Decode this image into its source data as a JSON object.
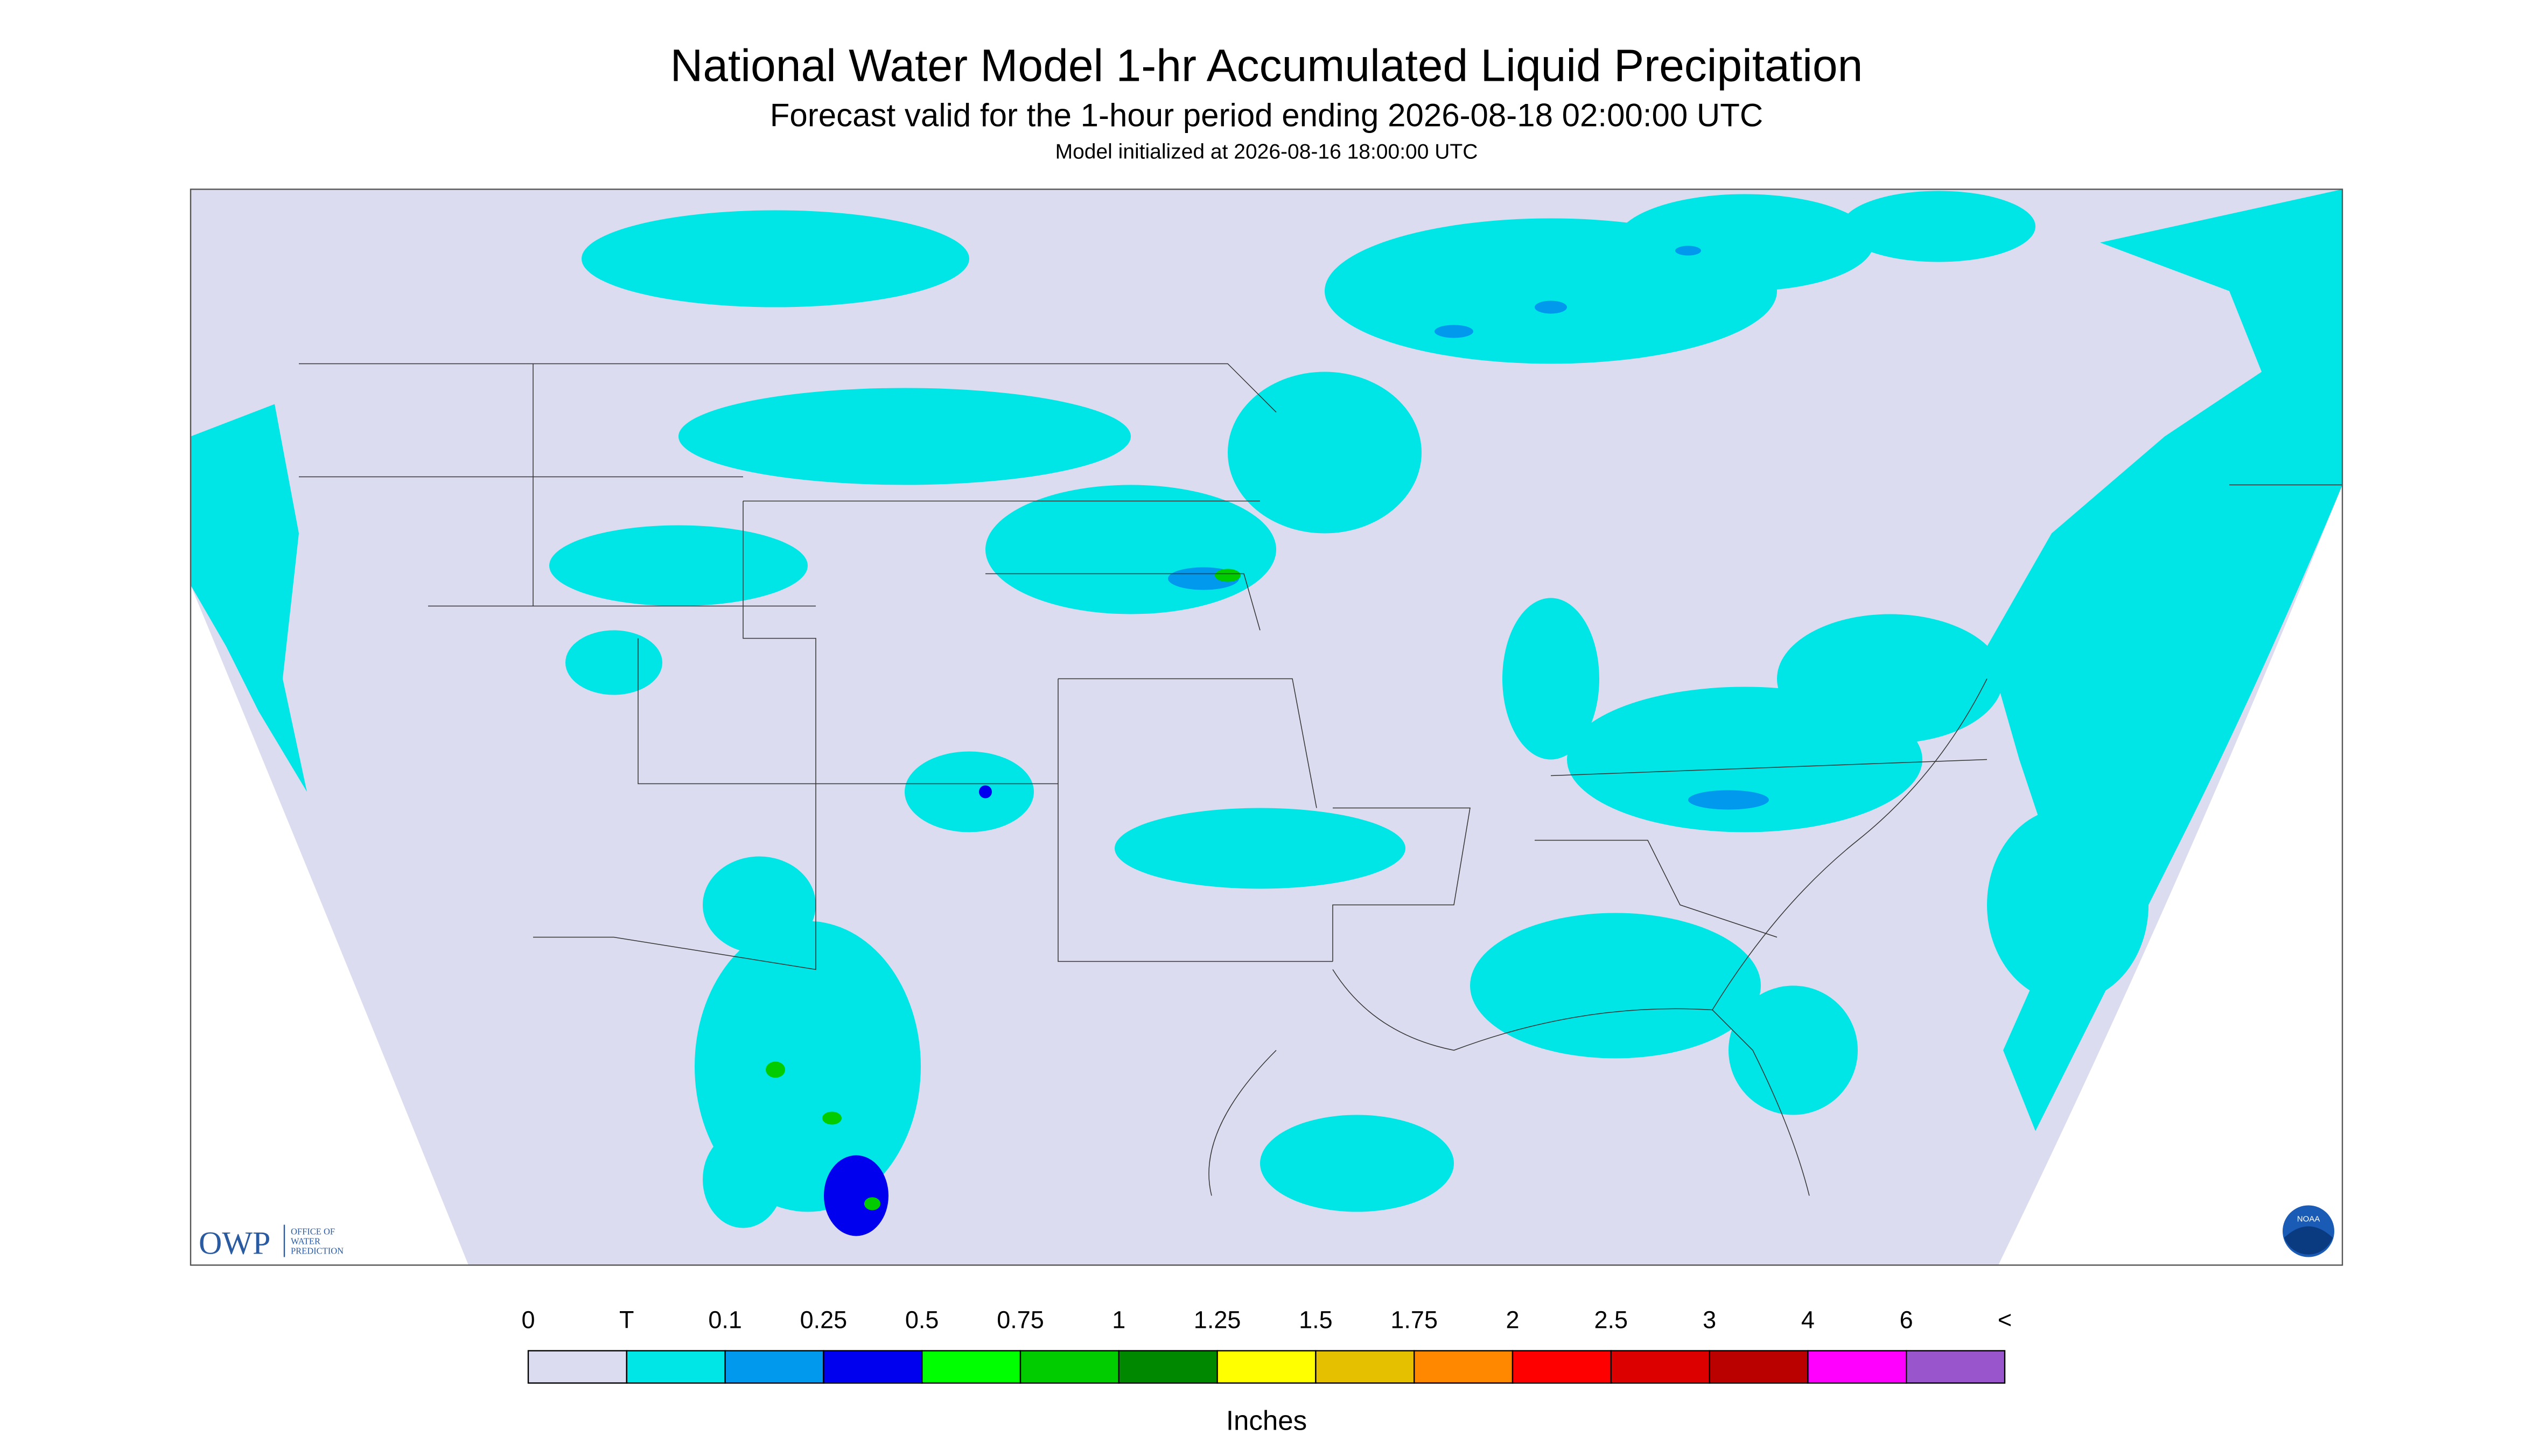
{
  "header": {
    "title": "National Water Model 1-hr Accumulated Liquid Precipitation",
    "subtitle": "Forecast valid for the 1-hour period ending 2026-08-18 02:00:00 UTC",
    "init": "Model initialized at 2026-08-16 18:00:00 UTC"
  },
  "logo": {
    "abbr": "OWP",
    "lines": [
      "OFFICE OF",
      "WATER",
      "PREDICTION"
    ],
    "badge": "NOAA"
  },
  "legend": {
    "unit": "Inches",
    "labels": [
      "0",
      "T",
      "0.1",
      "0.25",
      "0.5",
      "0.75",
      "1",
      "1.25",
      "1.5",
      "1.75",
      "2",
      "2.5",
      "3",
      "4",
      "6",
      "<"
    ],
    "colors": [
      "#dcdcf0",
      "#00e5e5",
      "#0099ee",
      "#0000ee",
      "#00ff00",
      "#00cc00",
      "#008800",
      "#ffff00",
      "#e5c000",
      "#ff8800",
      "#ff0000",
      "#dd0000",
      "#bb0000",
      "#ff00ff",
      "#9955cc"
    ]
  }
}
